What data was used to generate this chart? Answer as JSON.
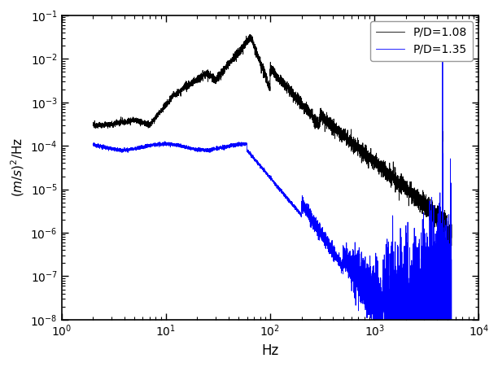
{
  "xlabel": "Hz",
  "ylabel": "$(m/s)^{\\wedge}2$/Hz",
  "xlim_log": [
    0,
    4
  ],
  "ylim_log": [
    -8,
    -1
  ],
  "legend": [
    "P/D=1.08",
    "P/D=1.35"
  ],
  "bg_color": "#ffffff",
  "linewidth": 0.6
}
